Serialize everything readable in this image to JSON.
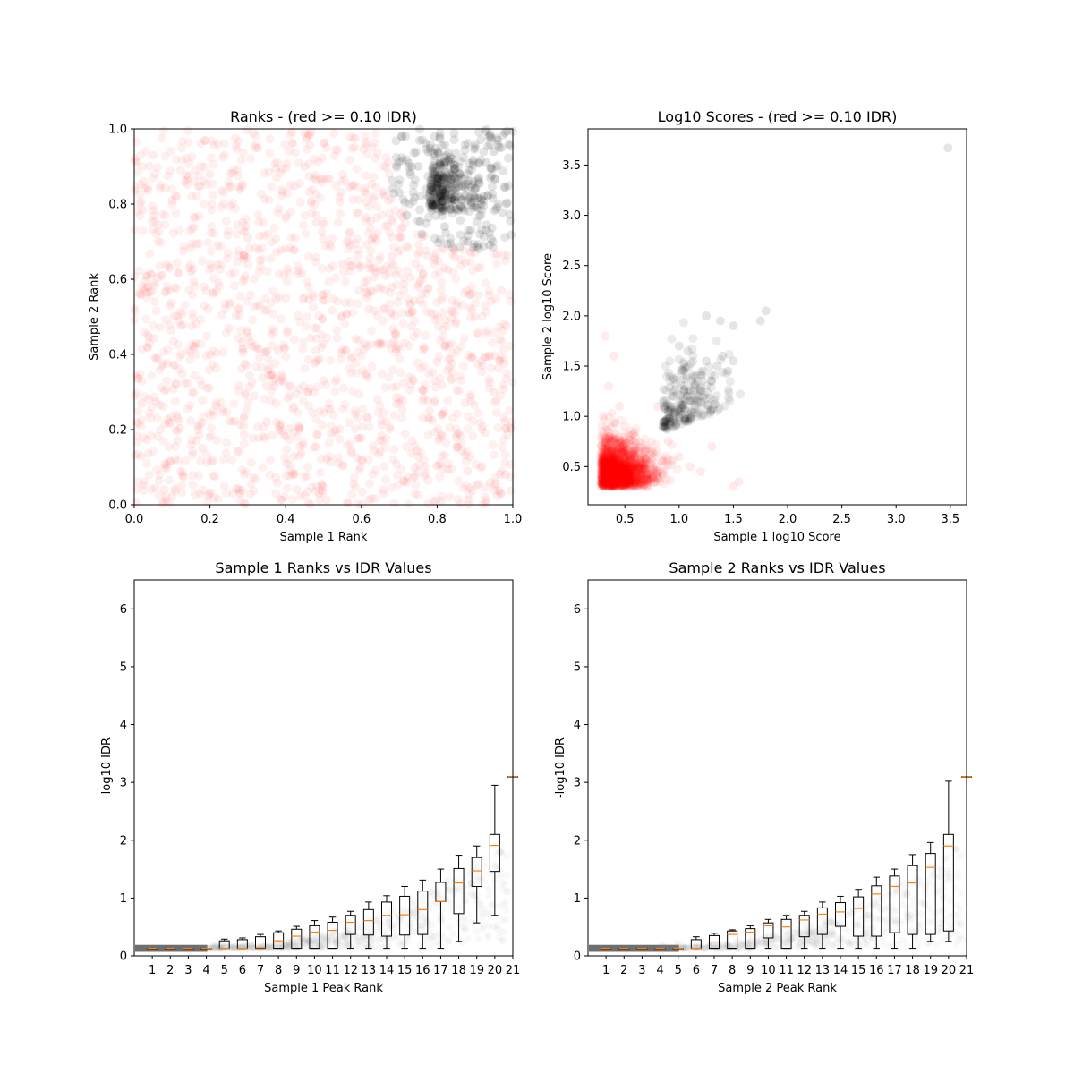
{
  "figure": {
    "background": "#ffffff"
  },
  "chart_data": [
    {
      "type": "scatter",
      "title": "Ranks - (red >= 0.10 IDR)",
      "xlabel": "Sample 1 Rank",
      "ylabel": "Sample 2 Rank",
      "xlim": [
        0,
        1
      ],
      "ylim": [
        0,
        1
      ],
      "xticks": [
        "0.0",
        "0.2",
        "0.4",
        "0.6",
        "0.8",
        "1.0"
      ],
      "yticks": [
        "0.0",
        "0.2",
        "0.4",
        "0.6",
        "0.8",
        "1.0"
      ],
      "grid": false,
      "series": [
        {
          "color": "#ff0000",
          "opacity": 0.07,
          "points": [
            [
              0.05,
              0.93
            ],
            [
              0.1,
              0.81
            ],
            [
              0.15,
              0.62
            ],
            [
              0.2,
              0.88
            ],
            [
              0.25,
              0.47
            ],
            [
              0.3,
              0.71
            ],
            [
              0.35,
              0.22
            ],
            [
              0.4,
              0.55
            ],
            [
              0.45,
              0.9
            ],
            [
              0.5,
              0.33
            ],
            [
              0.55,
              0.64
            ],
            [
              0.6,
              0.12
            ],
            [
              0.65,
              0.43
            ],
            [
              0.7,
              0.27
            ],
            [
              0.75,
              0.58
            ],
            [
              0.8,
              0.38
            ],
            [
              0.85,
              0.18
            ],
            [
              0.9,
              0.5
            ],
            [
              0.95,
              0.3
            ],
            [
              0.98,
              0.08
            ],
            [
              0.02,
              0.27
            ],
            [
              0.08,
              0.04
            ],
            [
              0.12,
              0.36
            ],
            [
              0.18,
              0.15
            ],
            [
              0.22,
              0.69
            ],
            [
              0.28,
              0.03
            ],
            [
              0.32,
              0.95
            ],
            [
              0.38,
              0.41
            ],
            [
              0.42,
              0.08
            ],
            [
              0.48,
              0.75
            ],
            [
              0.52,
              0.19
            ],
            [
              0.58,
              0.85
            ],
            [
              0.62,
              0.52
            ],
            [
              0.68,
              0.66
            ],
            [
              0.72,
              0.06
            ],
            [
              0.78,
              0.25
            ],
            [
              0.82,
              0.63
            ],
            [
              0.88,
              0.09
            ],
            [
              0.92,
              0.37
            ],
            [
              0.97,
              0.57
            ]
          ]
        },
        {
          "color": "#000000",
          "opacity": 0.12,
          "points": [
            [
              0.7,
              0.83
            ],
            [
              0.72,
              0.77
            ],
            [
              0.75,
              0.9
            ],
            [
              0.78,
              0.8
            ],
            [
              0.8,
              0.85
            ],
            [
              0.82,
              0.74
            ],
            [
              0.84,
              0.92
            ],
            [
              0.86,
              0.88
            ],
            [
              0.88,
              0.81
            ],
            [
              0.9,
              0.95
            ],
            [
              0.91,
              0.87
            ],
            [
              0.93,
              0.91
            ],
            [
              0.94,
              0.98
            ],
            [
              0.95,
              0.94
            ],
            [
              0.96,
              0.97
            ],
            [
              0.97,
              0.95
            ],
            [
              0.98,
              0.99
            ],
            [
              0.99,
              0.96
            ],
            [
              0.76,
              0.72
            ],
            [
              0.88,
              0.7
            ]
          ]
        }
      ]
    },
    {
      "type": "scatter",
      "title": "Log10 Scores - (red >= 0.10 IDR)",
      "xlabel": "Sample 1 log10 Score",
      "ylabel": "Sample 2 log10 Score",
      "xlim": [
        0.16,
        3.65
      ],
      "ylim": [
        0.12,
        3.86
      ],
      "xticks": [
        0.5,
        1.0,
        1.5,
        2.0,
        2.5,
        3.0,
        3.5
      ],
      "yticks": [
        0.5,
        1.0,
        1.5,
        2.0,
        2.5,
        3.0,
        3.5
      ],
      "grid": false,
      "series": [
        {
          "color": "#ff0000",
          "opacity": 0.08,
          "points": [
            [
              0.3,
              0.35
            ],
            [
              0.35,
              0.5
            ],
            [
              0.4,
              0.4
            ],
            [
              0.45,
              0.7
            ],
            [
              0.5,
              0.45
            ],
            [
              0.55,
              0.6
            ],
            [
              0.6,
              0.35
            ],
            [
              0.65,
              0.5
            ],
            [
              0.7,
              0.42
            ],
            [
              0.75,
              0.65
            ],
            [
              0.8,
              0.38
            ],
            [
              0.85,
              0.55
            ],
            [
              0.3,
              1.0
            ],
            [
              0.35,
              1.3
            ],
            [
              0.4,
              1.6
            ],
            [
              0.32,
              1.8
            ],
            [
              0.9,
              0.75
            ],
            [
              1.0,
              0.6
            ],
            [
              1.1,
              0.5
            ],
            [
              1.2,
              0.45
            ],
            [
              1.3,
              0.7
            ],
            [
              1.5,
              0.3
            ],
            [
              1.55,
              0.35
            ],
            [
              0.5,
              0.9
            ],
            [
              0.6,
              0.8
            ],
            [
              0.4,
              0.3
            ],
            [
              0.7,
              0.3
            ],
            [
              0.3,
              0.6
            ],
            [
              0.45,
              1.1
            ],
            [
              0.8,
              1.1
            ]
          ]
        },
        {
          "color": "#000000",
          "opacity": 0.1,
          "points": [
            [
              0.85,
              0.9
            ],
            [
              0.9,
              1.05
            ],
            [
              0.95,
              1.2
            ],
            [
              1.0,
              1.0
            ],
            [
              1.05,
              1.3
            ],
            [
              1.1,
              1.15
            ],
            [
              1.15,
              1.4
            ],
            [
              1.2,
              1.25
            ],
            [
              1.25,
              1.55
            ],
            [
              1.3,
              1.35
            ],
            [
              1.35,
              1.5
            ],
            [
              1.4,
              1.6
            ],
            [
              1.45,
              1.45
            ],
            [
              1.5,
              1.55
            ],
            [
              1.25,
              2.0
            ],
            [
              1.38,
              1.95
            ],
            [
              1.5,
              1.9
            ],
            [
              1.75,
              1.95
            ],
            [
              1.8,
              2.05
            ],
            [
              3.48,
              3.67
            ],
            [
              1.0,
              1.7
            ],
            [
              1.08,
              1.65
            ]
          ]
        }
      ]
    },
    {
      "type": "box",
      "title": "Sample 1 Ranks vs IDR Values",
      "xlabel": "Sample 1 Peak Rank",
      "ylabel": "-log10 IDR",
      "xlim": [
        0,
        21
      ],
      "ylim": [
        0,
        6.5
      ],
      "xticks": [
        "1",
        "2",
        "3",
        "4",
        "5",
        "6",
        "7",
        "8",
        "9",
        "10",
        "11",
        "12",
        "13",
        "14",
        "15",
        "16",
        "17",
        "18",
        "19",
        "20",
        "21"
      ],
      "yticks": [
        "0",
        "1",
        "2",
        "3",
        "4",
        "5",
        "6"
      ],
      "median_color": "#ff7f0e",
      "boxes": [
        {
          "x": 1,
          "q1": 0.13,
          "med": 0.13,
          "q3": 0.13,
          "lo": 0.13,
          "hi": 0.13
        },
        {
          "x": 2,
          "q1": 0.13,
          "med": 0.13,
          "q3": 0.13,
          "lo": 0.13,
          "hi": 0.13
        },
        {
          "x": 3,
          "q1": 0.13,
          "med": 0.13,
          "q3": 0.13,
          "lo": 0.13,
          "hi": 0.13
        },
        {
          "x": 4,
          "q1": 0.13,
          "med": 0.13,
          "q3": 0.13,
          "lo": 0.13,
          "hi": 0.13
        },
        {
          "x": 5,
          "q1": 0.13,
          "med": 0.13,
          "q3": 0.26,
          "lo": 0.13,
          "hi": 0.29
        },
        {
          "x": 6,
          "q1": 0.13,
          "med": 0.13,
          "q3": 0.28,
          "lo": 0.13,
          "hi": 0.31
        },
        {
          "x": 7,
          "q1": 0.13,
          "med": 0.14,
          "q3": 0.33,
          "lo": 0.13,
          "hi": 0.37
        },
        {
          "x": 8,
          "q1": 0.13,
          "med": 0.26,
          "q3": 0.4,
          "lo": 0.13,
          "hi": 0.43
        },
        {
          "x": 9,
          "q1": 0.13,
          "med": 0.34,
          "q3": 0.46,
          "lo": 0.13,
          "hi": 0.51
        },
        {
          "x": 10,
          "q1": 0.13,
          "med": 0.41,
          "q3": 0.52,
          "lo": 0.13,
          "hi": 0.61
        },
        {
          "x": 11,
          "q1": 0.13,
          "med": 0.44,
          "q3": 0.58,
          "lo": 0.13,
          "hi": 0.67
        },
        {
          "x": 12,
          "q1": 0.37,
          "med": 0.58,
          "q3": 0.7,
          "lo": 0.13,
          "hi": 0.77
        },
        {
          "x": 13,
          "q1": 0.36,
          "med": 0.61,
          "q3": 0.8,
          "lo": 0.13,
          "hi": 0.93
        },
        {
          "x": 14,
          "q1": 0.34,
          "med": 0.7,
          "q3": 0.93,
          "lo": 0.13,
          "hi": 1.04
        },
        {
          "x": 15,
          "q1": 0.36,
          "med": 0.71,
          "q3": 1.03,
          "lo": 0.13,
          "hi": 1.2
        },
        {
          "x": 16,
          "q1": 0.37,
          "med": 0.8,
          "q3": 1.12,
          "lo": 0.13,
          "hi": 1.31
        },
        {
          "x": 17,
          "q1": 0.94,
          "med": 0.94,
          "q3": 1.27,
          "lo": 0.13,
          "hi": 1.5
        },
        {
          "x": 18,
          "q1": 0.73,
          "med": 1.26,
          "q3": 1.51,
          "lo": 0.25,
          "hi": 1.74
        },
        {
          "x": 19,
          "q1": 1.2,
          "med": 1.47,
          "q3": 1.7,
          "lo": 0.57,
          "hi": 1.9
        },
        {
          "x": 20,
          "q1": 1.46,
          "med": 1.91,
          "q3": 2.1,
          "lo": 0.7,
          "hi": 2.95
        },
        {
          "x": 21,
          "q1": 3.1,
          "med": 3.1,
          "q3": 3.1,
          "lo": 3.1,
          "hi": 3.1
        }
      ]
    },
    {
      "type": "box",
      "title": "Sample 2 Ranks vs IDR Values",
      "xlabel": "Sample 2 Peak Rank",
      "ylabel": "-log10 IDR",
      "xlim": [
        0,
        21
      ],
      "ylim": [
        0,
        6.5
      ],
      "xticks": [
        "1",
        "2",
        "3",
        "4",
        "5",
        "6",
        "7",
        "8",
        "9",
        "10",
        "11",
        "12",
        "13",
        "14",
        "15",
        "16",
        "17",
        "18",
        "19",
        "20",
        "21"
      ],
      "yticks": [
        "0",
        "1",
        "2",
        "3",
        "4",
        "5",
        "6"
      ],
      "median_color": "#ff7f0e",
      "boxes": [
        {
          "x": 1,
          "q1": 0.13,
          "med": 0.13,
          "q3": 0.13,
          "lo": 0.13,
          "hi": 0.13
        },
        {
          "x": 2,
          "q1": 0.13,
          "med": 0.13,
          "q3": 0.13,
          "lo": 0.13,
          "hi": 0.13
        },
        {
          "x": 3,
          "q1": 0.13,
          "med": 0.13,
          "q3": 0.13,
          "lo": 0.13,
          "hi": 0.13
        },
        {
          "x": 4,
          "q1": 0.13,
          "med": 0.13,
          "q3": 0.13,
          "lo": 0.13,
          "hi": 0.13
        },
        {
          "x": 5,
          "q1": 0.13,
          "med": 0.13,
          "q3": 0.13,
          "lo": 0.13,
          "hi": 0.13
        },
        {
          "x": 6,
          "q1": 0.13,
          "med": 0.13,
          "q3": 0.28,
          "lo": 0.13,
          "hi": 0.33
        },
        {
          "x": 7,
          "q1": 0.13,
          "med": 0.24,
          "q3": 0.35,
          "lo": 0.13,
          "hi": 0.39
        },
        {
          "x": 8,
          "q1": 0.13,
          "med": 0.37,
          "q3": 0.43,
          "lo": 0.13,
          "hi": 0.45
        },
        {
          "x": 9,
          "q1": 0.13,
          "med": 0.41,
          "q3": 0.47,
          "lo": 0.13,
          "hi": 0.52
        },
        {
          "x": 10,
          "q1": 0.31,
          "med": 0.52,
          "q3": 0.57,
          "lo": 0.13,
          "hi": 0.63
        },
        {
          "x": 11,
          "q1": 0.13,
          "med": 0.5,
          "q3": 0.63,
          "lo": 0.13,
          "hi": 0.7
        },
        {
          "x": 12,
          "q1": 0.33,
          "med": 0.62,
          "q3": 0.7,
          "lo": 0.13,
          "hi": 0.77
        },
        {
          "x": 13,
          "q1": 0.37,
          "med": 0.72,
          "q3": 0.83,
          "lo": 0.13,
          "hi": 0.93
        },
        {
          "x": 14,
          "q1": 0.51,
          "med": 0.76,
          "q3": 0.92,
          "lo": 0.13,
          "hi": 1.03
        },
        {
          "x": 15,
          "q1": 0.34,
          "med": 0.82,
          "q3": 1.02,
          "lo": 0.13,
          "hi": 1.15
        },
        {
          "x": 16,
          "q1": 0.34,
          "med": 1.07,
          "q3": 1.21,
          "lo": 0.13,
          "hi": 1.36
        },
        {
          "x": 17,
          "q1": 0.4,
          "med": 1.2,
          "q3": 1.38,
          "lo": 0.13,
          "hi": 1.5
        },
        {
          "x": 18,
          "q1": 0.37,
          "med": 1.26,
          "q3": 1.56,
          "lo": 0.13,
          "hi": 1.75
        },
        {
          "x": 19,
          "q1": 0.37,
          "med": 1.53,
          "q3": 1.77,
          "lo": 0.25,
          "hi": 1.96
        },
        {
          "x": 20,
          "q1": 0.43,
          "med": 1.9,
          "q3": 2.1,
          "lo": 0.25,
          "hi": 3.02
        },
        {
          "x": 21,
          "q1": 3.1,
          "med": 3.1,
          "q3": 3.1,
          "lo": 3.1,
          "hi": 3.1
        }
      ]
    }
  ]
}
